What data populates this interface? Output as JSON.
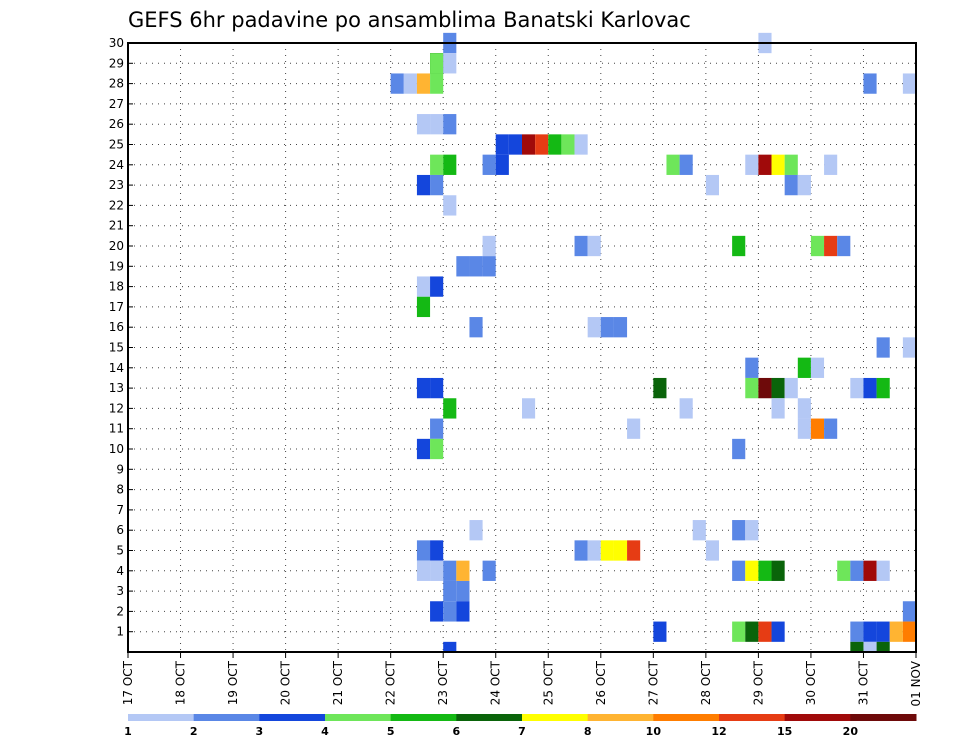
{
  "chart_data": {
    "type": "heatmap",
    "title": "GEFS 6hr padavine po ansamblima Banatski Karlovac",
    "xlabel": "",
    "ylabel": "",
    "x_tick_labels": [
      "17 OCT",
      "18 OCT",
      "19 OCT",
      "20 OCT",
      "21 OCT",
      "22 OCT",
      "23 OCT",
      "24 OCT",
      "25 OCT",
      "26 OCT",
      "27 OCT",
      "28 OCT",
      "29 OCT",
      "30 OCT",
      "31 OCT",
      "01 NOV"
    ],
    "xlim_days": [
      17,
      32
    ],
    "y_tick_labels": [
      1,
      2,
      3,
      4,
      5,
      6,
      7,
      8,
      9,
      10,
      11,
      12,
      13,
      14,
      15,
      16,
      17,
      18,
      19,
      20,
      21,
      22,
      23,
      24,
      25,
      26,
      27,
      28,
      29,
      30
    ],
    "ylim": [
      0,
      30
    ],
    "grid": true,
    "colorbar": {
      "levels": [
        "1",
        "2",
        "3",
        "4",
        "5",
        "6",
        "7",
        "8",
        "10",
        "12",
        "15",
        "20"
      ],
      "colors": [
        "#b4c8f5",
        "#5a87e6",
        "#1446dc",
        "#6ee65a",
        "#14b914",
        "#0a640a",
        "#ffff00",
        "#ffb432",
        "#ff7d00",
        "#e63c14",
        "#a00a0a",
        "#6e0a0a"
      ]
    },
    "cell_width_hours": 6,
    "cells": [
      {
        "day": 23.0,
        "member": 30,
        "c": 1
      },
      {
        "day": 29.0,
        "member": 30,
        "c": 0
      },
      {
        "day": 22.75,
        "member": 29,
        "c": 5
      },
      {
        "day": 22.75,
        "member": 29,
        "c": 5
      },
      {
        "day": 22.75,
        "member": 29,
        "c": 3
      },
      {
        "day": 23.0,
        "member": 29,
        "c": 0
      },
      {
        "day": 22.0,
        "member": 28,
        "c": 1
      },
      {
        "day": 22.25,
        "member": 28,
        "c": 0
      },
      {
        "day": 22.5,
        "member": 28,
        "c": 7
      },
      {
        "day": 22.75,
        "member": 28,
        "c": 3
      },
      {
        "day": 31.0,
        "member": 28,
        "c": 1
      },
      {
        "day": 31.75,
        "member": 28,
        "c": 0
      },
      {
        "day": 22.5,
        "member": 26,
        "c": 0
      },
      {
        "day": 22.75,
        "member": 26,
        "c": 0
      },
      {
        "day": 23.0,
        "member": 26,
        "c": 1
      },
      {
        "day": 24.0,
        "member": 25,
        "c": 2
      },
      {
        "day": 24.25,
        "member": 25,
        "c": 2
      },
      {
        "day": 24.5,
        "member": 25,
        "c": 10
      },
      {
        "day": 24.75,
        "member": 25,
        "c": 9
      },
      {
        "day": 25.0,
        "member": 25,
        "c": 4
      },
      {
        "day": 25.25,
        "member": 25,
        "c": 3
      },
      {
        "day": 25.5,
        "member": 25,
        "c": 0
      },
      {
        "day": 22.75,
        "member": 24,
        "c": 3
      },
      {
        "day": 23.0,
        "member": 24,
        "c": 4
      },
      {
        "day": 23.75,
        "member": 24,
        "c": 1
      },
      {
        "day": 24.0,
        "member": 24,
        "c": 2
      },
      {
        "day": 27.25,
        "member": 24,
        "c": 3
      },
      {
        "day": 27.5,
        "member": 24,
        "c": 1
      },
      {
        "day": 28.75,
        "member": 24,
        "c": 0
      },
      {
        "day": 29.0,
        "member": 24,
        "c": 10
      },
      {
        "day": 29.25,
        "member": 24,
        "c": 6
      },
      {
        "day": 29.5,
        "member": 24,
        "c": 3
      },
      {
        "day": 30.25,
        "member": 24,
        "c": 0
      },
      {
        "day": 22.5,
        "member": 23,
        "c": 2
      },
      {
        "day": 22.75,
        "member": 23,
        "c": 1
      },
      {
        "day": 28.0,
        "member": 23,
        "c": 0
      },
      {
        "day": 29.5,
        "member": 23,
        "c": 1
      },
      {
        "day": 29.75,
        "member": 23,
        "c": 0
      },
      {
        "day": 23.0,
        "member": 22,
        "c": 0
      },
      {
        "day": 23.75,
        "member": 20,
        "c": 0
      },
      {
        "day": 25.5,
        "member": 20,
        "c": 1
      },
      {
        "day": 25.75,
        "member": 20,
        "c": 0
      },
      {
        "day": 28.5,
        "member": 20,
        "c": 4
      },
      {
        "day": 30.0,
        "member": 20,
        "c": 3
      },
      {
        "day": 30.25,
        "member": 20,
        "c": 9
      },
      {
        "day": 30.5,
        "member": 20,
        "c": 1
      },
      {
        "day": 23.25,
        "member": 19,
        "c": 1
      },
      {
        "day": 23.5,
        "member": 19,
        "c": 1
      },
      {
        "day": 23.75,
        "member": 19,
        "c": 1
      },
      {
        "day": 22.5,
        "member": 18,
        "c": 0
      },
      {
        "day": 22.75,
        "member": 18,
        "c": 2
      },
      {
        "day": 22.5,
        "member": 17,
        "c": 4
      },
      {
        "day": 23.5,
        "member": 16,
        "c": 1
      },
      {
        "day": 25.75,
        "member": 16,
        "c": 0
      },
      {
        "day": 26.0,
        "member": 16,
        "c": 1
      },
      {
        "day": 26.25,
        "member": 16,
        "c": 1
      },
      {
        "day": 31.25,
        "member": 15,
        "c": 1
      },
      {
        "day": 31.75,
        "member": 15,
        "c": 0
      },
      {
        "day": 28.75,
        "member": 14,
        "c": 1
      },
      {
        "day": 29.75,
        "member": 14,
        "c": 4
      },
      {
        "day": 30.0,
        "member": 14,
        "c": 0
      },
      {
        "day": 22.5,
        "member": 13,
        "c": 2
      },
      {
        "day": 22.75,
        "member": 13,
        "c": 2
      },
      {
        "day": 27.0,
        "member": 13,
        "c": 5
      },
      {
        "day": 28.75,
        "member": 13,
        "c": 3
      },
      {
        "day": 29.0,
        "member": 13,
        "c": 11
      },
      {
        "day": 29.25,
        "member": 13,
        "c": 5
      },
      {
        "day": 29.5,
        "member": 13,
        "c": 0
      },
      {
        "day": 30.75,
        "member": 13,
        "c": 0
      },
      {
        "day": 31.0,
        "member": 13,
        "c": 2
      },
      {
        "day": 31.25,
        "member": 13,
        "c": 4
      },
      {
        "day": 23.0,
        "member": 12,
        "c": 4
      },
      {
        "day": 24.5,
        "member": 12,
        "c": 0
      },
      {
        "day": 27.5,
        "member": 12,
        "c": 0
      },
      {
        "day": 29.25,
        "member": 12,
        "c": 0
      },
      {
        "day": 29.75,
        "member": 12,
        "c": 0
      },
      {
        "day": 22.75,
        "member": 11,
        "c": 1
      },
      {
        "day": 26.5,
        "member": 11,
        "c": 0
      },
      {
        "day": 29.75,
        "member": 11,
        "c": 0
      },
      {
        "day": 30.0,
        "member": 11,
        "c": 8
      },
      {
        "day": 30.25,
        "member": 11,
        "c": 1
      },
      {
        "day": 22.5,
        "member": 10,
        "c": 2
      },
      {
        "day": 22.75,
        "member": 10,
        "c": 3
      },
      {
        "day": 28.5,
        "member": 10,
        "c": 1
      },
      {
        "day": 23.5,
        "member": 6,
        "c": 0
      },
      {
        "day": 27.75,
        "member": 6,
        "c": 0
      },
      {
        "day": 28.5,
        "member": 6,
        "c": 1
      },
      {
        "day": 28.75,
        "member": 6,
        "c": 0
      },
      {
        "day": 22.5,
        "member": 5,
        "c": 1
      },
      {
        "day": 22.75,
        "member": 5,
        "c": 2
      },
      {
        "day": 25.5,
        "member": 5,
        "c": 1
      },
      {
        "day": 25.75,
        "member": 5,
        "c": 0
      },
      {
        "day": 26.0,
        "member": 5,
        "c": 6
      },
      {
        "day": 26.25,
        "member": 5,
        "c": 6
      },
      {
        "day": 26.5,
        "member": 5,
        "c": 9
      },
      {
        "day": 28.0,
        "member": 5,
        "c": 0
      },
      {
        "day": 22.5,
        "member": 4,
        "c": 0
      },
      {
        "day": 22.75,
        "member": 4,
        "c": 0
      },
      {
        "day": 23.0,
        "member": 4,
        "c": 1
      },
      {
        "day": 23.25,
        "member": 4,
        "c": 7
      },
      {
        "day": 23.75,
        "member": 4,
        "c": 1
      },
      {
        "day": 28.5,
        "member": 4,
        "c": 1
      },
      {
        "day": 28.75,
        "member": 4,
        "c": 6
      },
      {
        "day": 29.0,
        "member": 4,
        "c": 4
      },
      {
        "day": 29.25,
        "member": 4,
        "c": 5
      },
      {
        "day": 30.5,
        "member": 4,
        "c": 3
      },
      {
        "day": 30.75,
        "member": 4,
        "c": 1
      },
      {
        "day": 31.0,
        "member": 4,
        "c": 10
      },
      {
        "day": 31.25,
        "member": 4,
        "c": 0
      },
      {
        "day": 23.0,
        "member": 3,
        "c": 1
      },
      {
        "day": 23.25,
        "member": 3,
        "c": 1
      },
      {
        "day": 22.75,
        "member": 2,
        "c": 2
      },
      {
        "day": 23.0,
        "member": 2,
        "c": 1
      },
      {
        "day": 23.25,
        "member": 2,
        "c": 2
      },
      {
        "day": 31.75,
        "member": 2,
        "c": 1
      },
      {
        "day": 27.0,
        "member": 1,
        "c": 2
      },
      {
        "day": 28.5,
        "member": 1,
        "c": 3
      },
      {
        "day": 28.75,
        "member": 1,
        "c": 5
      },
      {
        "day": 29.0,
        "member": 1,
        "c": 9
      },
      {
        "day": 29.25,
        "member": 1,
        "c": 2
      },
      {
        "day": 30.75,
        "member": 1,
        "c": 1
      },
      {
        "day": 31.0,
        "member": 1,
        "c": 2
      },
      {
        "day": 31.25,
        "member": 1,
        "c": 2
      },
      {
        "day": 31.5,
        "member": 1,
        "c": 7
      },
      {
        "day": 31.75,
        "member": 1,
        "c": 8
      },
      {
        "day": 23.0,
        "member": 0,
        "c": 2
      },
      {
        "day": 30.75,
        "member": 0,
        "c": 5
      },
      {
        "day": 31.0,
        "member": 0,
        "c": 0
      },
      {
        "day": 31.25,
        "member": 0,
        "c": 5
      }
    ]
  }
}
